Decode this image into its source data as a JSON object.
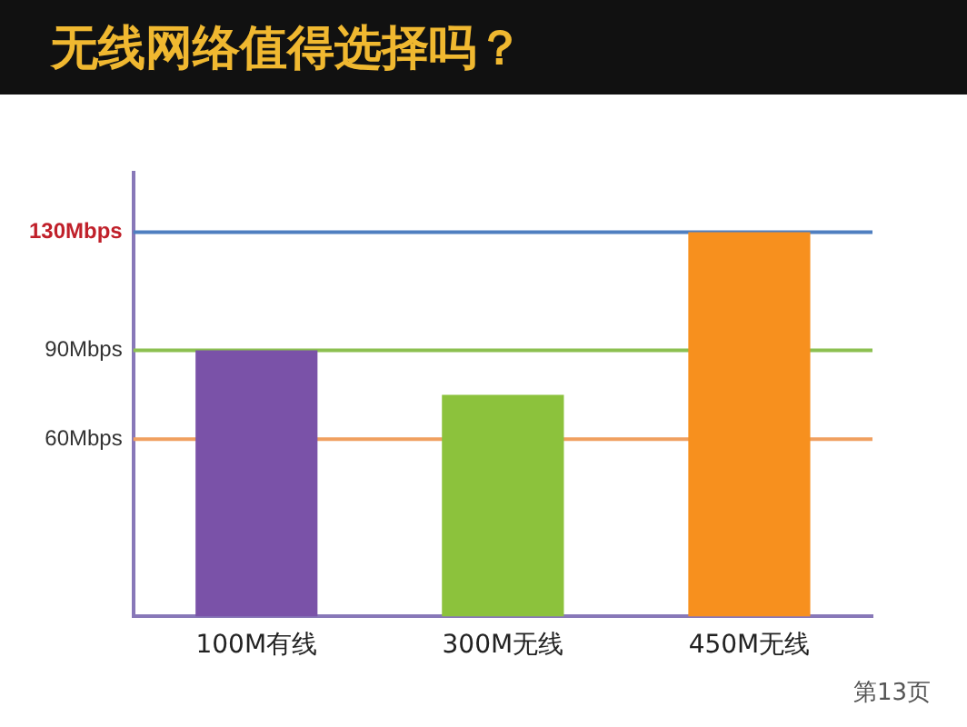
{
  "chart_data": {
    "type": "bar",
    "title": "无线网络值得选择吗？",
    "categories": [
      "100M有线",
      "300M无线",
      "450M无线"
    ],
    "values": [
      90,
      75,
      130
    ],
    "colors": [
      "#7a52a8",
      "#8cc23c",
      "#f7901e"
    ],
    "ylim": [
      0,
      150
    ],
    "yticks": [
      {
        "value": 60,
        "label": "60Mbps"
      },
      {
        "value": 90,
        "label": "90Mbps"
      },
      {
        "value": 130,
        "label": "130Mbps"
      }
    ],
    "ref_lines": [
      {
        "axis": "y",
        "value": 60,
        "color": "#f0a060"
      },
      {
        "axis": "y",
        "value": 90,
        "color": "#8cc050"
      },
      {
        "axis": "y",
        "value": 130,
        "color": "#4f7fc0"
      }
    ],
    "annotations": [
      "第13页"
    ],
    "grid": false,
    "legend": false
  }
}
